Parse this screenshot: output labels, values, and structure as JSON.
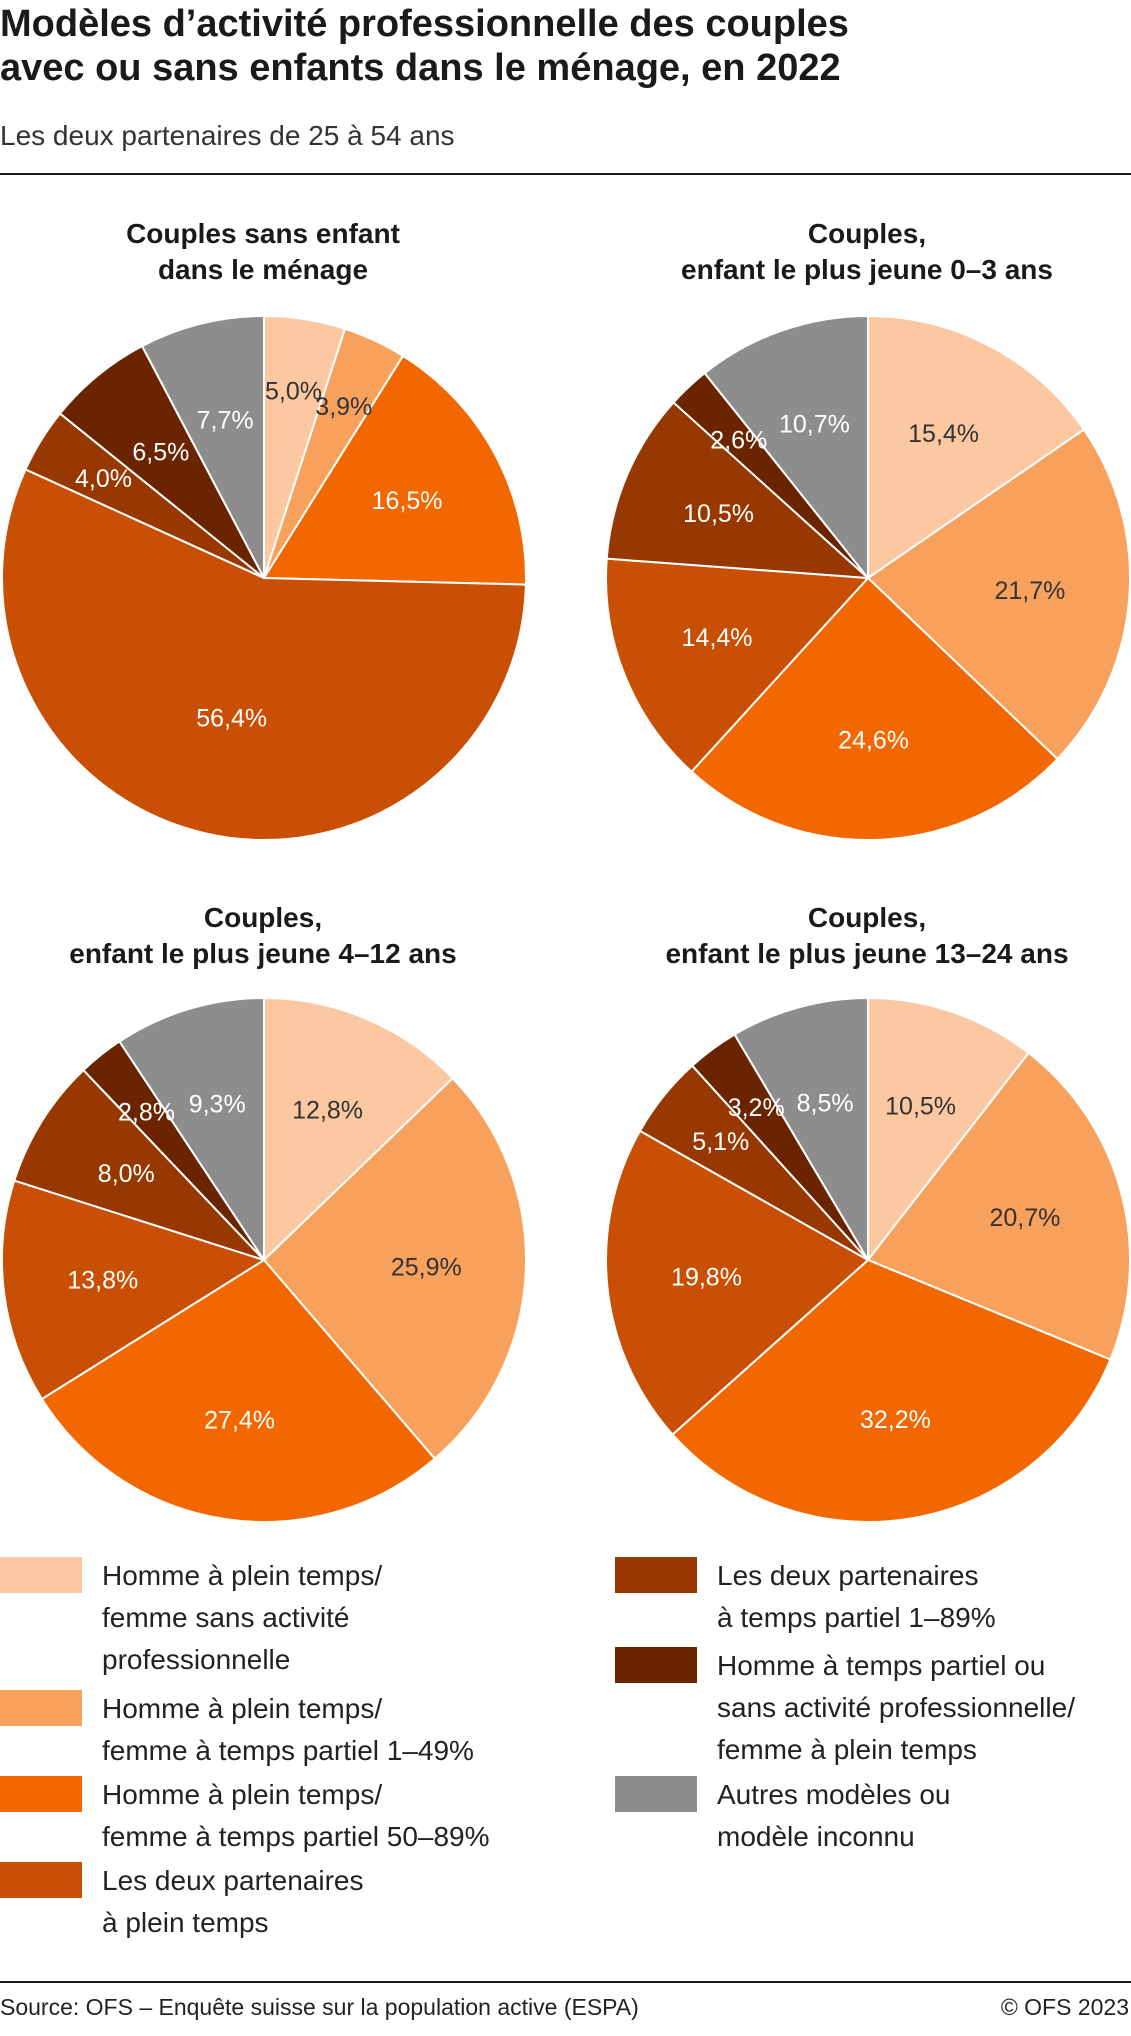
{
  "title_lines": [
    "Modèles d’activité professionnelle des couples",
    "avec ou sans enfants dans le ménage, en 2022"
  ],
  "subtitle": "Les deux partenaires de 25 à 54 ans",
  "legend": [
    {
      "lines": [
        "Homme à plein temps/",
        "femme sans activité",
        "professionnelle"
      ],
      "color": "#fbc8a2"
    },
    {
      "lines": [
        "Homme à plein temps/",
        "femme à temps partiel 1–49%"
      ],
      "color": "#f8a15c"
    },
    {
      "lines": [
        "Homme à plein temps/",
        "femme à temps partiel 50–89%"
      ],
      "color": "#f26700"
    },
    {
      "lines": [
        "Les deux partenaires",
        "à plein temps"
      ],
      "color": "#c94f04"
    },
    {
      "lines": [
        "Les deux partenaires",
        "à temps partiel 1–89%"
      ],
      "color": "#973800"
    },
    {
      "lines": [
        "Homme à temps partiel ou",
        "sans activité professionnelle/",
        "femme à plein temps"
      ],
      "color": "#6b2400"
    },
    {
      "lines": [
        "Autres modèles ou",
        "modèle inconnu"
      ],
      "color": "#8d8d8d"
    }
  ],
  "chart_data": [
    {
      "type": "pie",
      "title_lines": [
        "Couples sans enfant",
        "dans le ménage"
      ],
      "values": [
        5.0,
        3.9,
        16.5,
        56.4,
        4.0,
        6.5,
        7.7
      ],
      "labels": [
        "5,0%",
        "3,9%",
        "16,5%",
        "56,4%",
        "4,0%",
        "6,5%",
        "7,7%"
      ]
    },
    {
      "type": "pie",
      "title_lines": [
        "Couples,",
        "enfant le plus jeune 0–3 ans"
      ],
      "values": [
        15.4,
        21.7,
        24.6,
        14.4,
        10.5,
        2.6,
        10.7
      ],
      "labels": [
        "15,4%",
        "21,7%",
        "24,6%",
        "14,4%",
        "10,5%",
        "2,6%",
        "10,7%"
      ]
    },
    {
      "type": "pie",
      "title_lines": [
        "Couples,",
        "enfant le plus jeune 4–12 ans"
      ],
      "values": [
        12.8,
        25.9,
        27.4,
        13.8,
        8.0,
        2.8,
        9.3
      ],
      "labels": [
        "12,8%",
        "25,9%",
        "27,4%",
        "13,8%",
        "8,0%",
        "2,8%",
        "9,3%"
      ]
    },
    {
      "type": "pie",
      "title_lines": [
        "Couples,",
        "enfant le plus jeune 13–24 ans"
      ],
      "values": [
        10.5,
        20.7,
        32.2,
        19.8,
        5.1,
        3.2,
        8.5
      ],
      "labels": [
        "10,5%",
        "20,7%",
        "32,2%",
        "19,8%",
        "5,1%",
        "3,2%",
        "8,5%"
      ]
    }
  ],
  "source": "Source: OFS – Enquête suisse sur la population active (ESPA)",
  "copyright": "© OFS 2023"
}
